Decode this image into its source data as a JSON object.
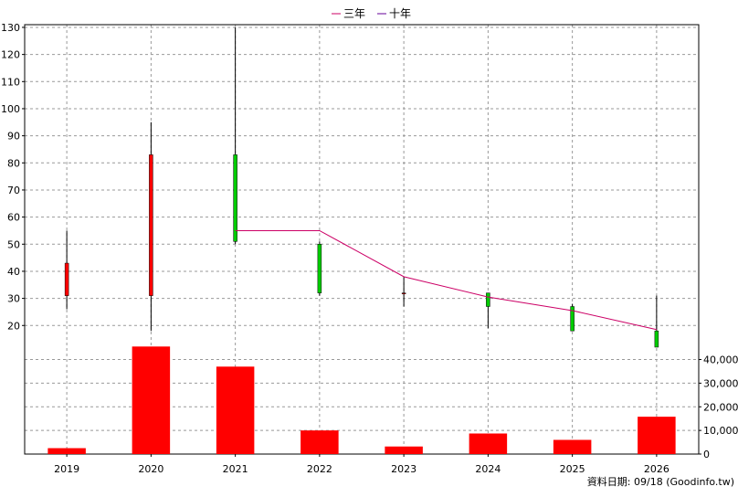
{
  "chart_data": {
    "type": "candlestick+line+bar",
    "x_categories": [
      "2019",
      "2020",
      "2021",
      "2022",
      "2023",
      "2024",
      "2025",
      "2026"
    ],
    "legend": [
      {
        "name": "三年",
        "color": "#cc0066"
      },
      {
        "name": "十年",
        "color": "#660099"
      }
    ],
    "price_axis": {
      "ticks": [
        20,
        30,
        40,
        50,
        60,
        70,
        80,
        90,
        100,
        110,
        120,
        130
      ],
      "range": [
        12,
        131
      ]
    },
    "volume_axis": {
      "ticks": [
        0,
        10000,
        20000,
        30000,
        40000
      ],
      "tick_labels": [
        "0",
        "10,000",
        "20,000",
        "30,000",
        "40,000"
      ],
      "range": [
        0,
        46000
      ]
    },
    "candles": [
      {
        "year": "2019",
        "open": 31,
        "high": 55,
        "low": 26,
        "close": 43
      },
      {
        "year": "2020",
        "open": 31,
        "high": 95,
        "low": 18,
        "close": 83
      },
      {
        "year": "2021",
        "open": 83,
        "high": 130,
        "low": 50,
        "close": 51
      },
      {
        "year": "2022",
        "open": 50,
        "high": 51,
        "low": 31,
        "close": 32
      },
      {
        "year": "2023",
        "open": 32,
        "high": 38,
        "low": 27,
        "close": 32
      },
      {
        "year": "2024",
        "open": 32,
        "high": 32,
        "low": 19,
        "close": 27
      },
      {
        "year": "2025",
        "open": 27,
        "high": 28,
        "low": 18,
        "close": 18
      },
      {
        "year": "2026",
        "open": 18,
        "high": 31,
        "low": 12,
        "close": 12
      }
    ],
    "three_year_line": {
      "name": "三年",
      "x": [
        "2021",
        "2022",
        "2023",
        "2024",
        "2025",
        "2026"
      ],
      "values": [
        55,
        55,
        38,
        30.5,
        25.5,
        18.5
      ]
    },
    "volume": [
      2500,
      45500,
      37000,
      10000,
      3200,
      8700,
      6000,
      15800
    ],
    "footnote": "資料日期: 09/18 (Goodinfo.tw)",
    "grid": true,
    "colors": {
      "up": "#ff0000",
      "down": "#00cc00",
      "volume": "#ff0000",
      "grid": "#999999",
      "axis": "#000000"
    }
  }
}
